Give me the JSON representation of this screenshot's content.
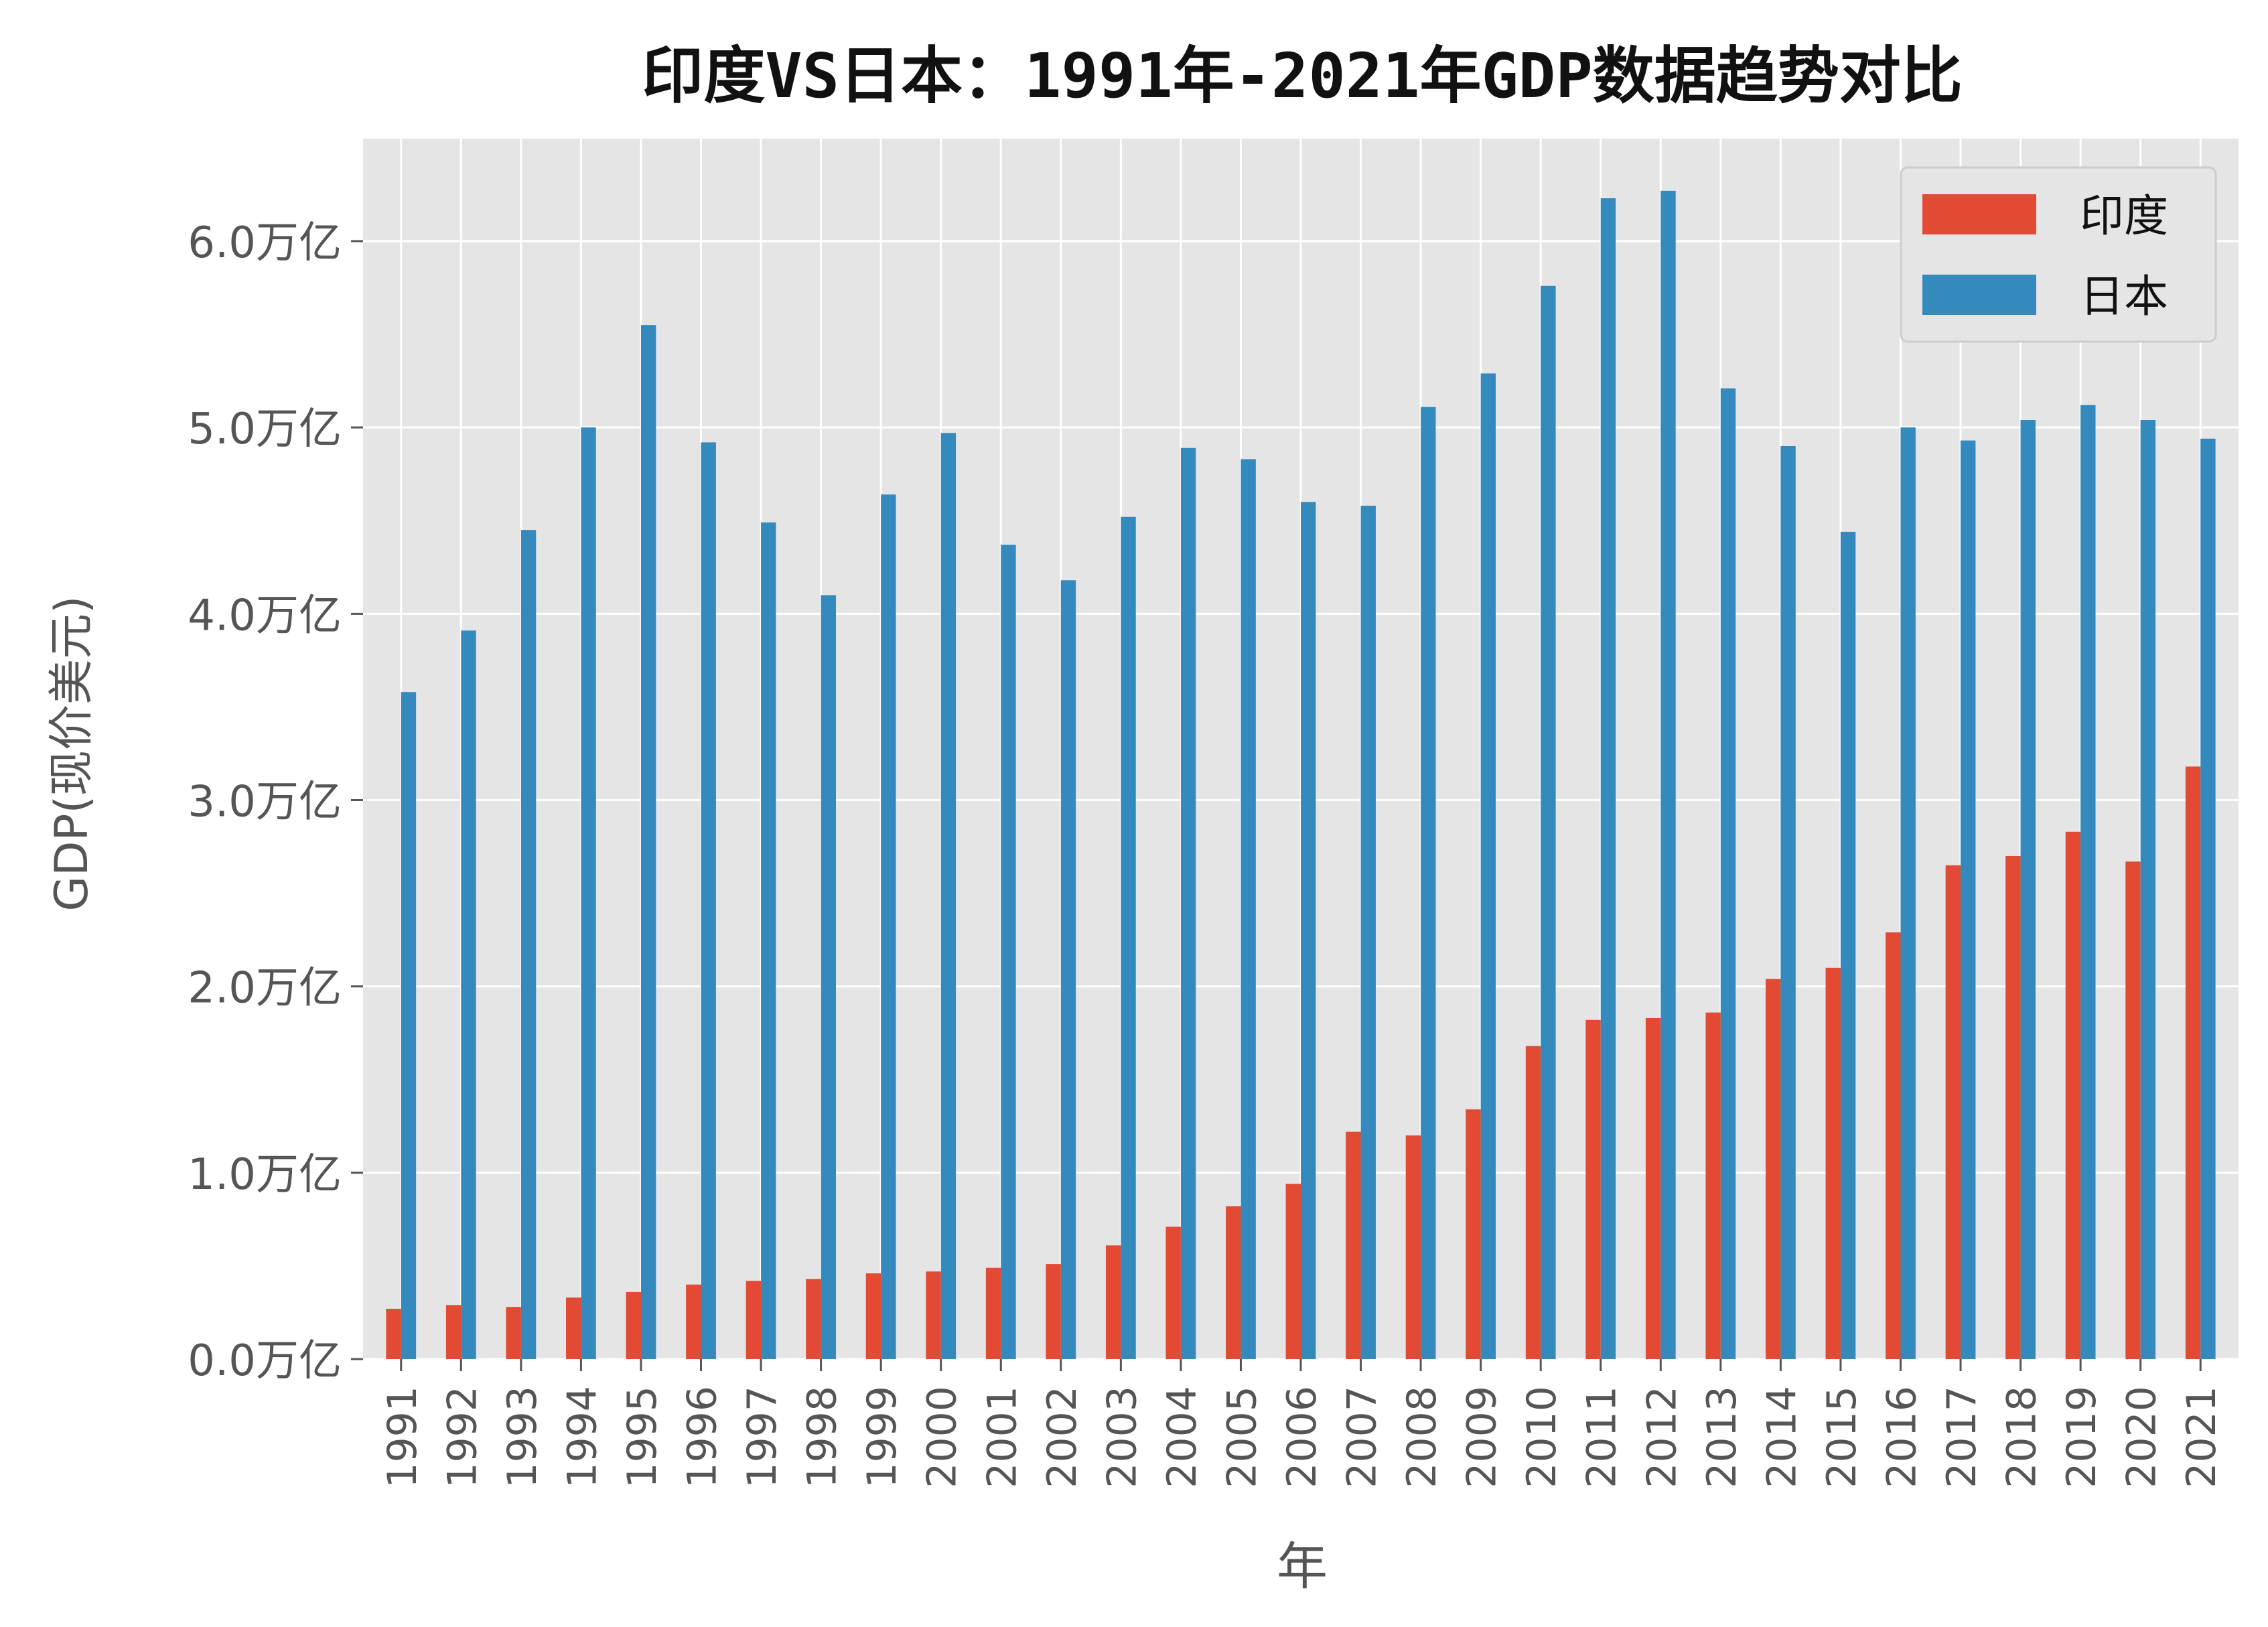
{
  "chart_data": {
    "type": "bar",
    "title": "印度VS日本：1991年-2021年GDP数据趋势对比",
    "xlabel": "年",
    "ylabel": "GDP(现价美元)",
    "ylim": [
      0,
      6.55
    ],
    "y_ticks": [
      {
        "value": 0.0,
        "label": "0.0万亿"
      },
      {
        "value": 1.0,
        "label": "1.0万亿"
      },
      {
        "value": 2.0,
        "label": "2.0万亿"
      },
      {
        "value": 3.0,
        "label": "3.0万亿"
      },
      {
        "value": 4.0,
        "label": "4.0万亿"
      },
      {
        "value": 5.0,
        "label": "5.0万亿"
      },
      {
        "value": 6.0,
        "label": "6.0万亿"
      }
    ],
    "grid": true,
    "legend_position": "top-right",
    "categories": [
      "1991",
      "1992",
      "1993",
      "1994",
      "1995",
      "1996",
      "1997",
      "1998",
      "1999",
      "2000",
      "2001",
      "2002",
      "2003",
      "2004",
      "2005",
      "2006",
      "2007",
      "2008",
      "2009",
      "2010",
      "2011",
      "2012",
      "2013",
      "2014",
      "2015",
      "2016",
      "2017",
      "2018",
      "2019",
      "2020",
      "2021"
    ],
    "series": [
      {
        "name": "印度",
        "color": "#E24A33",
        "values": [
          0.27,
          0.29,
          0.28,
          0.33,
          0.36,
          0.4,
          0.42,
          0.43,
          0.46,
          0.47,
          0.49,
          0.51,
          0.61,
          0.71,
          0.82,
          0.94,
          1.22,
          1.2,
          1.34,
          1.68,
          1.82,
          1.83,
          1.86,
          2.04,
          2.1,
          2.29,
          2.65,
          2.7,
          2.83,
          2.67,
          3.18
        ]
      },
      {
        "name": "日本",
        "color": "#348ABD",
        "values": [
          3.58,
          3.91,
          4.45,
          5.0,
          5.55,
          4.92,
          4.49,
          4.1,
          4.64,
          4.97,
          4.37,
          4.18,
          4.52,
          4.89,
          4.83,
          4.6,
          4.58,
          5.11,
          5.29,
          5.76,
          6.23,
          6.27,
          5.21,
          4.9,
          4.44,
          5.0,
          4.93,
          5.04,
          5.12,
          5.04,
          4.94
        ]
      }
    ]
  }
}
